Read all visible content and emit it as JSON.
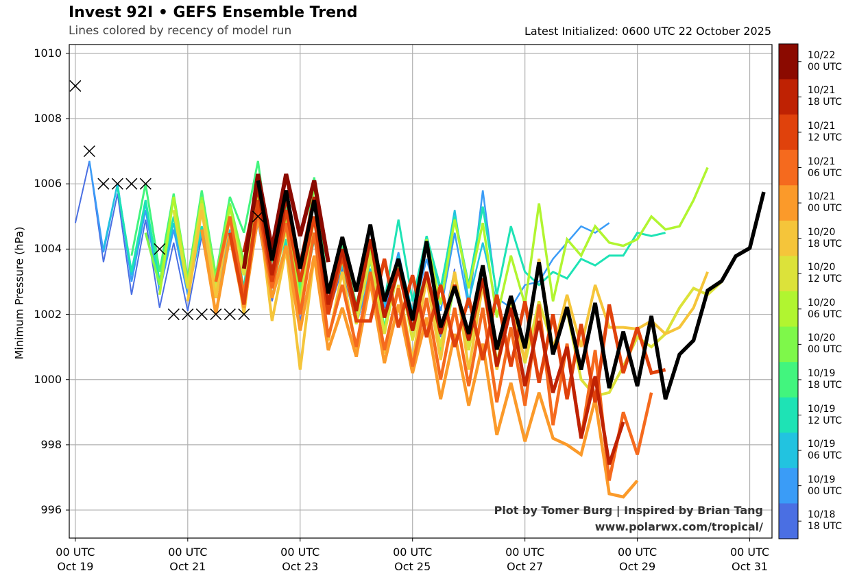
{
  "header": {
    "title": "Invest 92I • GEFS Ensemble Trend",
    "subtitle": "Lines colored by recency of model run",
    "latest": "Latest Initialized: 0600 UTC 22 October 2025"
  },
  "credits": {
    "line1": "Plot by Tomer Burg | Inspired by Brian Tang",
    "line2": "www.polarwx.com/tropical/"
  },
  "chart_data": {
    "type": "line",
    "title": "Invest 92I • GEFS Ensemble Trend",
    "ylabel": "Minimum Pressure (hPa)",
    "xlabel": "",
    "x_units": "hours since 00 UTC Oct 19",
    "step_hours": 6,
    "xlim": [
      -2.6,
      297.5
    ],
    "ylim": [
      995.14,
      1010.27
    ],
    "grid": true,
    "yticks": [
      996,
      998,
      1000,
      1002,
      1004,
      1006,
      1008,
      1010
    ],
    "xticks": [
      {
        "hour": 0,
        "line1": "00 UTC",
        "line2": "Oct 19"
      },
      {
        "hour": 48,
        "line1": "00 UTC",
        "line2": "Oct 21"
      },
      {
        "hour": 96,
        "line1": "00 UTC",
        "line2": "Oct 23"
      },
      {
        "hour": 144,
        "line1": "00 UTC",
        "line2": "Oct 25"
      },
      {
        "hour": 192,
        "line1": "00 UTC",
        "line2": "Oct 27"
      },
      {
        "hour": 240,
        "line1": "00 UTC",
        "line2": "Oct 29"
      },
      {
        "hour": 288,
        "line1": "00 UTC",
        "line2": "Oct 31"
      }
    ],
    "colorbar": [
      {
        "l1": "10/22",
        "l2": "00 UTC",
        "color": "#8b0a00"
      },
      {
        "l1": "10/21",
        "l2": "18 UTC",
        "color": "#bf2203"
      },
      {
        "l1": "10/21",
        "l2": "12 UTC",
        "color": "#e0420c"
      },
      {
        "l1": "10/21",
        "l2": "06 UTC",
        "color": "#f56a1e"
      },
      {
        "l1": "10/21",
        "l2": "00 UTC",
        "color": "#fb9a2a"
      },
      {
        "l1": "10/20",
        "l2": "18 UTC",
        "color": "#f5c53a"
      },
      {
        "l1": "10/20",
        "l2": "12 UTC",
        "color": "#dce23a"
      },
      {
        "l1": "10/20",
        "l2": "06 UTC",
        "color": "#b1f530"
      },
      {
        "l1": "10/20",
        "l2": "00 UTC",
        "color": "#7ef84a"
      },
      {
        "l1": "10/19",
        "l2": "18 UTC",
        "color": "#42f57e"
      },
      {
        "l1": "10/19",
        "l2": "12 UTC",
        "color": "#1ee3b5"
      },
      {
        "l1": "10/19",
        "l2": "06 UTC",
        "color": "#22c3e0"
      },
      {
        "l1": "10/19",
        "l2": "00 UTC",
        "color": "#3a9cf7"
      },
      {
        "l1": "10/18",
        "l2": "18 UTC",
        "color": "#4a6fe3"
      }
    ],
    "series": [
      {
        "name": "10/18 18 UTC",
        "color": "#4a6fe3",
        "start_hour": 0,
        "values": [
          1004.8,
          1006.7,
          1003.6,
          1005.7,
          1002.6,
          1004.9,
          1002.2,
          1004.2,
          1002.1,
          1004.4,
          1002.0,
          1004.3,
          1002.3,
          1004.8,
          1002.4,
          1004.0,
          1001.8,
          1003.7,
          1002.0,
          1003.4,
          1001.7,
          1003.1,
          1002.0,
          1003.9,
          1001.8,
          1003.3,
          1001.3,
          1003.4
        ]
      },
      {
        "name": "10/19 00 UTC",
        "color": "#3a9cf7",
        "start_hour": 6,
        "values": [
          1006.7,
          1003.9,
          1006.0,
          1003.0,
          1005.2,
          1002.7,
          1004.6,
          1002.6,
          1004.6,
          1002.5,
          1004.4,
          1002.6,
          1004.9,
          1002.5,
          1004.1,
          1002.0,
          1004.5,
          1002.3,
          1003.6,
          1001.7,
          1003.2,
          1002.2,
          1003.9,
          1001.9,
          1003.7,
          1002.1,
          1004.5,
          1002.2,
          1005.8,
          1002.5,
          1002.2,
          1002.9,
          1003.0,
          1003.7,
          1004.2,
          1004.7,
          1004.5,
          1004.8
        ]
      },
      {
        "name": "10/19 06 UTC",
        "color": "#22c3e0",
        "start_hour": 12,
        "values": [
          1004.0,
          1006.0,
          1003.2,
          1005.4,
          1002.9,
          1004.8,
          1002.8,
          1004.5,
          1002.6,
          1004.6,
          1002.6,
          1004.9,
          1002.6,
          1004.2,
          1002.1,
          1004.4,
          1002.2,
          1003.5,
          1001.9,
          1003.4,
          1002.3,
          1003.8,
          1002.1,
          1004.3,
          1002.7,
          1005.2,
          1002.4,
          1004.2,
          1002.3
        ]
      },
      {
        "name": "10/19 12 UTC",
        "color": "#1ee3b5",
        "start_hour": 18,
        "values": [
          1005.9,
          1003.3,
          1005.5,
          1003.0,
          1005.0,
          1003.0,
          1004.7,
          1002.9,
          1005.0,
          1002.8,
          1006.3,
          1003.2,
          1004.3,
          1002.2,
          1004.3,
          1002.4,
          1003.7,
          1002.0,
          1003.6,
          1002.4,
          1004.9,
          1002.4,
          1004.4,
          1002.8,
          1005.0,
          1002.9,
          1005.3,
          1002.6,
          1004.7,
          1003.3,
          1002.9,
          1003.3,
          1003.1,
          1003.7,
          1003.5,
          1003.8,
          1003.8,
          1004.5,
          1004.4,
          1004.5
        ]
      },
      {
        "name": "10/19 18 UTC",
        "color": "#42f57e",
        "start_hour": 24,
        "values": [
          1003.8,
          1006.0,
          1003.3,
          1005.7,
          1003.1,
          1005.8,
          1003.2,
          1005.6,
          1004.5,
          1006.7,
          1003.6,
          1005.3,
          1002.8,
          1006.2,
          1002.7,
          1004.1,
          1002.3,
          1004.0,
          1001.6,
          1003.7,
          1001.9,
          1003.3,
          1000.6
        ]
      },
      {
        "name": "10/20 00 UTC",
        "color": "#7ef84a",
        "start_hour": 30,
        "values": [
          1004.5,
          1002.9,
          1005.6,
          1003.0,
          1005.6,
          1003.1,
          1005.4,
          1003.6,
          1005.7,
          1003.0,
          1005.0,
          1002.5,
          1006.0,
          1002.3,
          1003.8,
          1001.9,
          1003.7,
          1001.5,
          1003.5,
          1001.5,
          1003.2,
          1000.8,
          1002.9,
          1001.0,
          1003.0,
          1000.6
        ]
      },
      {
        "name": "10/20 06 UTC",
        "color": "#b1f530",
        "start_hour": 36,
        "values": [
          1002.6,
          1005.6,
          1002.9,
          1005.5,
          1002.7,
          1005.3,
          1003.3,
          1005.6,
          1003.0,
          1005.0,
          1002.3,
          1005.6,
          1002.2,
          1003.8,
          1001.8,
          1004.0,
          1001.4,
          1003.4,
          1001.5,
          1004.3,
          1002.3,
          1004.9,
          1002.8,
          1004.8,
          1001.9,
          1003.8,
          1002.3,
          1005.4,
          1002.4,
          1004.3,
          1003.8,
          1004.7,
          1004.2,
          1004.1,
          1004.3,
          1005.0,
          1004.6,
          1004.7,
          1005.5,
          1006.5
        ]
      },
      {
        "name": "10/20 12 UTC",
        "color": "#dce23a",
        "start_hour": 42,
        "values": [
          1005.2,
          1002.8,
          1005.4,
          1002.7,
          1005.0,
          1003.2,
          1005.3,
          1002.8,
          1004.6,
          1002.2,
          1005.0,
          1002.0,
          1003.7,
          1001.7,
          1003.8,
          1001.4,
          1003.5,
          1001.2,
          1003.2,
          1001.0,
          1003.3,
          1000.9,
          1003.1,
          1000.5,
          1002.4,
          1000.5,
          1002.4,
          1001.0,
          1002.1,
          1000.0,
          999.5,
          999.6,
          1000.4,
          1001.3,
          1001.0,
          1001.4,
          1002.2,
          1002.8,
          1002.6,
          1003.0
        ]
      },
      {
        "name": "10/20 18 UTC",
        "color": "#f5c53a",
        "start_hour": 48,
        "values": [
          1002.4,
          1005.2,
          1002.5,
          1005.0,
          1002.0,
          1005.4,
          1001.8,
          1004.0,
          1000.3,
          1003.8,
          1001.2,
          1003.3,
          1000.9,
          1003.2,
          1000.8,
          1002.9,
          1000.6,
          1003.1,
          1000.6,
          1003.3,
          1000.3,
          1002.9,
          1000.3,
          1002.2,
          1000.6,
          1003.7,
          1000.9,
          1002.6,
          1001.0,
          1002.9,
          1001.6,
          1001.6,
          1001.55,
          1001.8,
          1001.4,
          1001.6,
          1002.2,
          1003.3
        ]
      },
      {
        "name": "10/21 00 UTC",
        "color": "#fb9a2a",
        "start_hour": 54,
        "values": [
          1004.6,
          1002.0,
          1004.4,
          1002.2,
          1005.0,
          1002.5,
          1004.1,
          1001.5,
          1003.8,
          1000.9,
          1002.2,
          1000.7,
          1003.0,
          1000.5,
          1002.3,
          1000.2,
          1001.9,
          999.4,
          1001.4,
          999.2,
          1001.1,
          998.3,
          999.9,
          998.1,
          999.6,
          998.2,
          998.0,
          997.7,
          999.4,
          996.5,
          996.4,
          996.9
        ]
      },
      {
        "name": "10/21 06 UTC",
        "color": "#f56a1e",
        "start_hour": 60,
        "values": [
          1003.0,
          1005.0,
          1002.6,
          1005.2,
          1002.8,
          1004.8,
          1002.0,
          1004.5,
          1001.3,
          1002.9,
          1001.0,
          1003.3,
          1000.9,
          1002.8,
          1000.4,
          1002.5,
          1000.0,
          1002.2,
          999.8,
          1002.2,
          999.3,
          1001.6,
          999.2,
          1002.3,
          998.6,
          1001.1,
          998.2,
          1000.9,
          996.9,
          999.0,
          997.7,
          999.6
        ]
      },
      {
        "name": "10/21 12 UTC",
        "color": "#e0420c",
        "start_hour": 66,
        "values": [
          1004.5,
          1002.3,
          1005.5,
          1003.0,
          1005.2,
          1003.0,
          1005.0,
          1002.0,
          1003.8,
          1001.8,
          1001.8,
          1003.7,
          1001.6,
          1003.2,
          1001.3,
          1002.9,
          1001.0,
          1002.5,
          1000.6,
          1002.6,
          1000.4,
          1002.4,
          999.9,
          1002.0,
          999.4,
          1001.7,
          999.3,
          1002.3,
          1000.2,
          1001.6,
          1000.2,
          1000.3
        ]
      },
      {
        "name": "10/21 18 UTC",
        "color": "#bf2203",
        "start_hour": 72,
        "values": [
          1003.9,
          1005.9,
          1003.2,
          1005.6,
          1003.5,
          1005.6,
          1002.3,
          1004.0,
          1002.1,
          1004.3,
          1001.9,
          1003.4,
          1001.5,
          1003.3,
          1001.4,
          1002.9,
          1001.2,
          1003.1,
          1000.4,
          1002.2,
          999.8,
          1001.8,
          999.6,
          1001.0,
          998.2,
          1000.1,
          997.4,
          998.7
        ]
      },
      {
        "name": "10/22 00 UTC",
        "color": "#8b0a00",
        "start_hour": 72,
        "values": [
          1003.4,
          1006.3,
          1004.0,
          1006.3,
          1004.4,
          1006.1,
          1003.6
        ]
      },
      {
        "name": "10/22 06 UTC (latest)",
        "color": "#000000",
        "start_hour": 78,
        "values": [
          1006.1,
          1003.65,
          1005.8,
          1003.4,
          1005.5,
          1002.64,
          1004.37,
          1002.7,
          1004.75,
          1002.4,
          1003.7,
          1001.82,
          1004.24,
          1001.6,
          1002.85,
          1001.4,
          1003.5,
          1000.92,
          1002.56,
          1000.96,
          1003.6,
          1000.77,
          1002.22,
          1000.3,
          1002.35,
          999.74,
          1001.47,
          999.8,
          1001.95,
          999.4,
          1000.77,
          1001.2,
          1002.73,
          1003.02,
          1003.78,
          1004.03,
          1005.75
        ]
      }
    ],
    "observations": [
      [
        0,
        1009
      ],
      [
        6,
        1007
      ],
      [
        12,
        1006
      ],
      [
        18,
        1006
      ],
      [
        24,
        1006
      ],
      [
        30,
        1006
      ],
      [
        36,
        1004
      ],
      [
        42,
        1002
      ],
      [
        48,
        1002
      ],
      [
        54,
        1002
      ],
      [
        60,
        1002
      ],
      [
        66,
        1002
      ],
      [
        72,
        1002
      ],
      [
        78,
        1005
      ]
    ]
  }
}
